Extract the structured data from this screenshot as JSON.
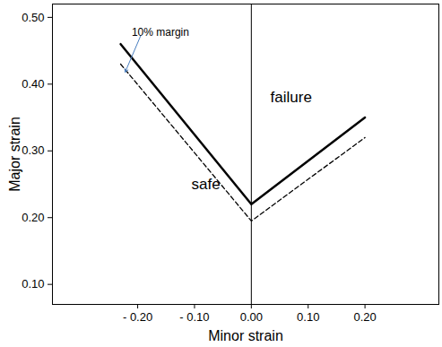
{
  "chart_data": {
    "type": "line",
    "x_label": "Minor strain",
    "y_label": "Major strain",
    "x": [
      -0.23,
      0.0,
      0.2
    ],
    "series": [
      {
        "color": "#000000",
        "line_style": "solid",
        "values": [
          0.46,
          0.22,
          0.35
        ]
      },
      {
        "color": "#000000",
        "line_style": "dashed",
        "values": [
          0.43,
          0.195,
          0.32
        ]
      }
    ],
    "xlim": [
      -0.35,
      0.33
    ],
    "xticks": [
      {
        "value": -0.2,
        "label": "- 0.20"
      },
      {
        "value": -0.1,
        "label": "- 0.10"
      },
      {
        "value": 0,
        "label": "0.00"
      },
      {
        "value": 0.1,
        "label": "0.10"
      },
      {
        "value": 0.2,
        "label": "0.20"
      }
    ],
    "ylim": [
      0.07,
      0.52
    ],
    "yticks": [
      {
        "value": 0.1,
        "label": "0.10"
      },
      {
        "value": 0.2,
        "label": "0.20"
      },
      {
        "value": 0.3,
        "label": "0.30"
      },
      {
        "value": 0.4,
        "label": "0.40"
      },
      {
        "value": 0.5,
        "label": "0.50"
      }
    ],
    "grid": false,
    "annotations": [
      {
        "text": "10% margin",
        "x": -0.16,
        "y": 0.478,
        "arrow_to": {
          "x": -0.222,
          "y": 0.418
        }
      },
      {
        "text": "failure",
        "x": 0.07,
        "y": 0.38
      },
      {
        "text": "safe",
        "x": -0.08,
        "y": 0.25
      }
    ]
  }
}
